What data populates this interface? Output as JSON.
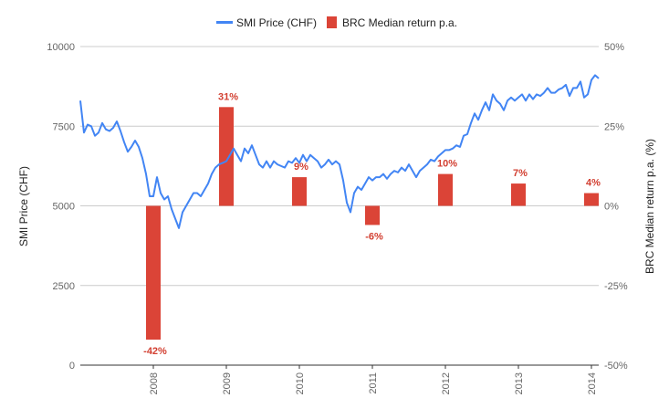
{
  "chart_data": {
    "type": "bar+line",
    "title": "",
    "legend": {
      "placement": "top",
      "entries": [
        {
          "name": "SMI Price (CHF)",
          "kind": "line",
          "color": "#4285f4"
        },
        {
          "name": "BRC Median return p.a.",
          "kind": "bar",
          "color": "#db4437"
        }
      ]
    },
    "x_axis": {
      "ticks": [
        "2008",
        "2009",
        "2010",
        "2011",
        "2012",
        "2013",
        "2014"
      ],
      "range": [
        2007.0,
        2014.1
      ]
    },
    "y_left": {
      "label": "SMI Price (CHF)",
      "range": [
        0,
        10000
      ],
      "ticks": [
        "0",
        "2500",
        "5000",
        "7500",
        "10000"
      ]
    },
    "y_right": {
      "label": "BRC Median return p.a. (%)",
      "range": [
        -50,
        50
      ],
      "ticks": [
        "-50%",
        "-25%",
        "0%",
        "25%",
        "50%"
      ]
    },
    "grid": true,
    "colors": {
      "line": "#4285f4",
      "bar": "#db4437",
      "bar_label": "#d23f31"
    },
    "series": [
      {
        "name": "SMI Price (CHF)",
        "axis": "left",
        "type": "line",
        "x": [
          2007.0,
          2007.05,
          2007.1,
          2007.15,
          2007.2,
          2007.25,
          2007.3,
          2007.35,
          2007.4,
          2007.45,
          2007.5,
          2007.55,
          2007.6,
          2007.65,
          2007.7,
          2007.75,
          2007.8,
          2007.85,
          2007.9,
          2007.95,
          2008.0,
          2008.05,
          2008.1,
          2008.15,
          2008.2,
          2008.25,
          2008.3,
          2008.35,
          2008.4,
          2008.45,
          2008.5,
          2008.55,
          2008.6,
          2008.65,
          2008.7,
          2008.75,
          2008.8,
          2008.85,
          2008.9,
          2008.95,
          2009.0,
          2009.05,
          2009.1,
          2009.15,
          2009.2,
          2009.25,
          2009.3,
          2009.35,
          2009.4,
          2009.45,
          2009.5,
          2009.55,
          2009.6,
          2009.65,
          2009.7,
          2009.75,
          2009.8,
          2009.85,
          2009.9,
          2009.95,
          2010.0,
          2010.05,
          2010.1,
          2010.15,
          2010.2,
          2010.25,
          2010.3,
          2010.35,
          2010.4,
          2010.45,
          2010.5,
          2010.55,
          2010.6,
          2010.65,
          2010.7,
          2010.75,
          2010.8,
          2010.85,
          2010.9,
          2010.95,
          2011.0,
          2011.05,
          2011.1,
          2011.15,
          2011.2,
          2011.25,
          2011.3,
          2011.35,
          2011.4,
          2011.45,
          2011.5,
          2011.55,
          2011.6,
          2011.65,
          2011.7,
          2011.75,
          2011.8,
          2011.85,
          2011.9,
          2011.95,
          2012.0,
          2012.05,
          2012.1,
          2012.15,
          2012.2,
          2012.25,
          2012.3,
          2012.35,
          2012.4,
          2012.45,
          2012.5,
          2012.55,
          2012.6,
          2012.65,
          2012.7,
          2012.75,
          2012.8,
          2012.85,
          2012.9,
          2012.95,
          2013.0,
          2013.05,
          2013.1,
          2013.15,
          2013.2,
          2013.25,
          2013.3,
          2013.35,
          2013.4,
          2013.45,
          2013.5,
          2013.55,
          2013.6,
          2013.65,
          2013.7,
          2013.75,
          2013.8,
          2013.85,
          2013.9,
          2013.95,
          2014.0,
          2014.05,
          2014.1
        ],
        "values": [
          8300,
          7300,
          7550,
          7500,
          7200,
          7300,
          7600,
          7400,
          7350,
          7450,
          7650,
          7350,
          7000,
          6700,
          6850,
          7050,
          6850,
          6500,
          6000,
          5300,
          5300,
          5900,
          5400,
          5200,
          5300,
          4900,
          4600,
          4300,
          4800,
          5000,
          5200,
          5400,
          5400,
          5300,
          5500,
          5700,
          6000,
          6200,
          6300,
          6350,
          6400,
          6600,
          6800,
          6600,
          6400,
          6800,
          6650,
          6900,
          6600,
          6300,
          6200,
          6400,
          6200,
          6400,
          6300,
          6250,
          6200,
          6400,
          6350,
          6500,
          6350,
          6600,
          6400,
          6600,
          6500,
          6400,
          6200,
          6300,
          6450,
          6300,
          6400,
          6300,
          5800,
          5100,
          4800,
          5400,
          5600,
          5500,
          5700,
          5900,
          5800,
          5900,
          5900,
          6000,
          5850,
          6000,
          6100,
          6050,
          6200,
          6100,
          6300,
          6100,
          5900,
          6100,
          6200,
          6300,
          6450,
          6400,
          6550,
          6650,
          6750,
          6750,
          6800,
          6900,
          6850,
          7200,
          7250,
          7600,
          7900,
          7700,
          8000,
          8250,
          8000,
          8500,
          8300,
          8200,
          8000,
          8300,
          8400,
          8300,
          8400,
          8500,
          8300,
          8500,
          8350,
          8500,
          8450,
          8550,
          8700,
          8550,
          8550,
          8650,
          8700,
          8800,
          8450,
          8700,
          8700,
          8900,
          8400,
          8500,
          8950,
          9100,
          9000
        ]
      },
      {
        "name": "BRC Median return p.a.",
        "axis": "right",
        "type": "bar",
        "x": [
          2008.0,
          2009.0,
          2010.0,
          2011.0,
          2012.0,
          2013.0,
          2014.0
        ],
        "values": [
          -42,
          31,
          9,
          -6,
          10,
          7,
          4
        ],
        "labels": [
          "-42%",
          "31%",
          "9%",
          "-6%",
          "10%",
          "7%",
          "4%"
        ]
      }
    ]
  }
}
